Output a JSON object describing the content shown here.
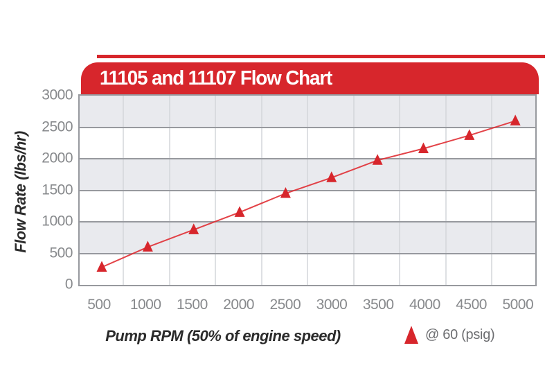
{
  "header": {
    "title": "11105 and 11107 Flow Chart"
  },
  "colors": {
    "red": "#d7262c",
    "line_red": "#e02e33",
    "band_gray": "#e9eaee",
    "band_white": "#ffffff",
    "hgrid_gray": "#97999e",
    "vgrid_gray": "#d3d5da",
    "tick_text": "#87898c",
    "axis_title_text": "#2b2b2b",
    "legend_text": "#6d6e71",
    "banner_text": "#ffffff"
  },
  "chart_data": {
    "type": "line",
    "title": "11105 and 11107 Flow Chart",
    "xlabel": "Pump RPM (50% of engine speed)",
    "ylabel": "Flow Rate (lbs/hr)",
    "categories": [
      500,
      1000,
      1500,
      2000,
      2500,
      3000,
      3500,
      4000,
      4500,
      5000
    ],
    "series": [
      {
        "name": "@ 60 (psig)",
        "marker": "triangle-up",
        "color": "#d7262c",
        "values": [
          280,
          600,
          875,
          1150,
          1450,
          1700,
          1975,
          2160,
          2370,
          2600
        ]
      }
    ],
    "ylim": [
      0,
      3000
    ],
    "y_ticks": [
      0,
      500,
      1000,
      1500,
      2000,
      2500,
      3000
    ],
    "grid": {
      "horizontal": true,
      "vertical": "between-categories",
      "alternating_bands": true
    },
    "legend_position": "bottom-right"
  },
  "legend": {
    "label": "@ 60 (psig)"
  }
}
